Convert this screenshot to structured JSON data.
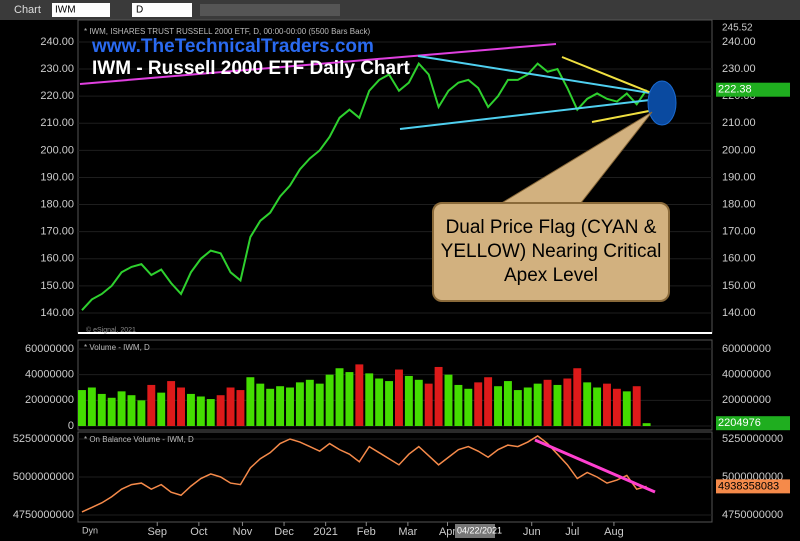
{
  "toolbar": {
    "window": "Chart",
    "symbol": "IWM",
    "interval": "D"
  },
  "header_value": "245.52",
  "watermark": "© eSignal, 2021",
  "bottom_left": "Dyn",
  "cursor_date": "04/22/2021",
  "chart_data": [
    {
      "type": "line",
      "header": "* IWM, ISHARES TRUST RUSSELL 2000 ETF, D, 00:00-00:00 (5500 Bars Back)",
      "title": "IWM - Russell 2000 ETF Daily Chart",
      "subtitle": "www.TheTechnicalTraders.com",
      "annotations": [
        "Dual Price Flag (CYAN & YELLOW) Nearing Critical Apex Level"
      ],
      "color": "#2ed02e",
      "values": [
        141,
        145,
        147,
        150,
        155,
        157,
        158,
        154,
        156,
        151,
        147,
        155,
        160,
        163,
        162,
        155,
        152,
        168,
        174,
        177,
        183,
        187,
        193,
        197,
        200,
        205,
        212,
        215,
        212,
        222,
        226,
        228,
        222,
        225,
        232,
        228,
        216,
        222,
        225,
        226,
        223,
        216,
        220,
        226,
        226,
        228,
        232,
        229,
        230,
        223,
        215,
        219,
        221,
        219,
        218,
        221,
        217,
        222.38
      ],
      "xlim": [
        -0.4,
        63.6
      ],
      "xticks": [
        {
          "value": 7.6,
          "label": "Sep"
        },
        {
          "value": 11.8,
          "label": "Oct"
        },
        {
          "value": 16.2,
          "label": "Nov"
        },
        {
          "value": 20.4,
          "label": "Dec"
        },
        {
          "value": 24.6,
          "label": "2021"
        },
        {
          "value": 28.7,
          "label": "Feb"
        },
        {
          "value": 32.9,
          "label": "Mar"
        },
        {
          "value": 36.9,
          "label": "Apr"
        },
        {
          "value": 45.4,
          "label": "Jun"
        },
        {
          "value": 49.5,
          "label": "Jul"
        },
        {
          "value": 53.7,
          "label": "Aug"
        }
      ],
      "ylim": [
        132.6,
        248.1
      ],
      "yticks": [
        {
          "value": 140,
          "label": "140.00"
        },
        {
          "value": 150,
          "label": "150.00"
        },
        {
          "value": 160,
          "label": "160.00"
        },
        {
          "value": 170,
          "label": "170.00"
        },
        {
          "value": 180,
          "label": "180.00"
        },
        {
          "value": 190,
          "label": "190.00"
        },
        {
          "value": 200,
          "label": "200.00"
        },
        {
          "value": 210,
          "label": "210.00"
        },
        {
          "value": 220,
          "label": "220.00"
        },
        {
          "value": 230,
          "label": "230.00"
        },
        {
          "value": 240,
          "label": "240.00"
        }
      ]
    },
    {
      "type": "bar",
      "header": "* Volume - IWM, D",
      "up_color": "#44dd00",
      "down_color": "#dd1a1a",
      "values": [
        28000000,
        30000000,
        25000000,
        22000000,
        27000000,
        24000000,
        20000000,
        32000000,
        26000000,
        35000000,
        30000000,
        25000000,
        23000000,
        21000000,
        24000000,
        30000000,
        28000000,
        38000000,
        33000000,
        29000000,
        31000000,
        30000000,
        34000000,
        36000000,
        33000000,
        40000000,
        45000000,
        42000000,
        48000000,
        41000000,
        37000000,
        35000000,
        44000000,
        39000000,
        36000000,
        33000000,
        46000000,
        40000000,
        32000000,
        29000000,
        34000000,
        38000000,
        31000000,
        35000000,
        28000000,
        30000000,
        33000000,
        36000000,
        32000000,
        37000000,
        45000000,
        34000000,
        30000000,
        33000000,
        29000000,
        27000000,
        31000000,
        2204976
      ],
      "xlim": [
        -0.4,
        63.6
      ],
      "ylim": [
        -3100000,
        67000000
      ],
      "yticks": [
        0,
        20000000,
        40000000,
        60000000
      ]
    },
    {
      "type": "line",
      "header": "* On Balance Volume - IWM, D",
      "color": "#f58a4a",
      "values": [
        4770000000,
        4800000000,
        4830000000,
        4870000000,
        4920000000,
        4950000000,
        4960000000,
        4920000000,
        4950000000,
        4900000000,
        4880000000,
        4940000000,
        4990000000,
        5020000000,
        5000000000,
        4960000000,
        4950000000,
        5060000000,
        5120000000,
        5160000000,
        5220000000,
        5250000000,
        5230000000,
        5200000000,
        5170000000,
        5220000000,
        5180000000,
        5150000000,
        5100000000,
        5200000000,
        5160000000,
        5120000000,
        5080000000,
        5150000000,
        5200000000,
        5140000000,
        5080000000,
        5130000000,
        5180000000,
        5200000000,
        5170000000,
        5130000000,
        5180000000,
        5210000000,
        5200000000,
        5230000000,
        5270000000,
        5220000000,
        5150000000,
        5080000000,
        4990000000,
        5030000000,
        5000000000,
        4960000000,
        4980000000,
        5010000000,
        4920000000,
        4938358083
      ],
      "xlim": [
        -0.4,
        63.6
      ],
      "ylim": [
        4704000000,
        5296000000
      ],
      "yticks": [
        4750000000,
        5000000000,
        5250000000
      ]
    }
  ]
}
